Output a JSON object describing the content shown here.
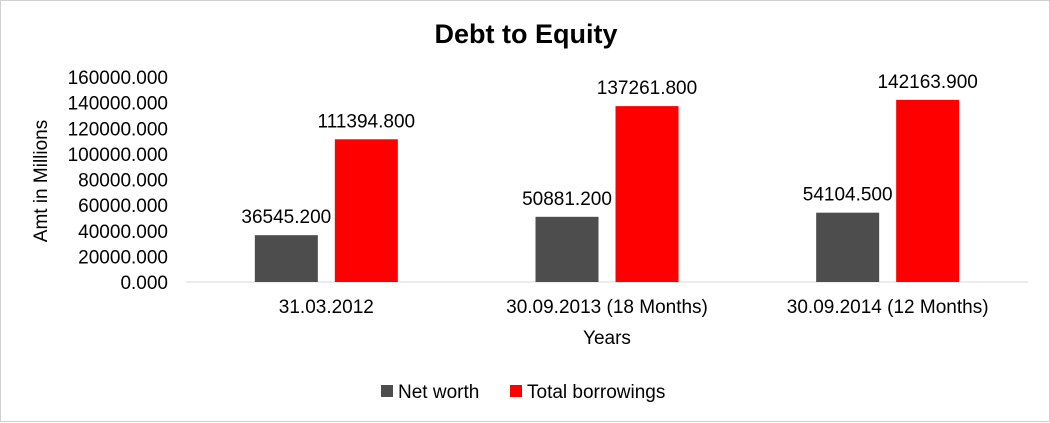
{
  "chart_data": {
    "type": "bar",
    "title": "Debt to Equity",
    "xlabel": "Years",
    "ylabel": "Amt in Millions",
    "categories": [
      "31.03.2012",
      "30.09.2013 (18 Months)",
      "30.09.2014 (12 Months)"
    ],
    "series": [
      {
        "name": "Net worth",
        "color": "#4d4d4d",
        "values": [
          36545.2,
          50881.2,
          54104.5
        ],
        "labels": [
          "36545.200",
          "50881.200",
          "54104.500"
        ]
      },
      {
        "name": "Total borrowings",
        "color": "#ff0000",
        "values": [
          111394.8,
          137261.8,
          142163.9
        ],
        "labels": [
          "111394.800",
          "137261.800",
          "142163.900"
        ]
      }
    ],
    "ylim": [
      0,
      160000
    ],
    "yticks": [
      0,
      20000,
      40000,
      60000,
      80000,
      100000,
      120000,
      140000,
      160000
    ],
    "ytick_labels": [
      "0.000",
      "20000.000",
      "40000.000",
      "60000.000",
      "80000.000",
      "100000.000",
      "120000.000",
      "140000.000",
      "160000.000"
    ],
    "grid": false,
    "legend_position": "bottom"
  }
}
